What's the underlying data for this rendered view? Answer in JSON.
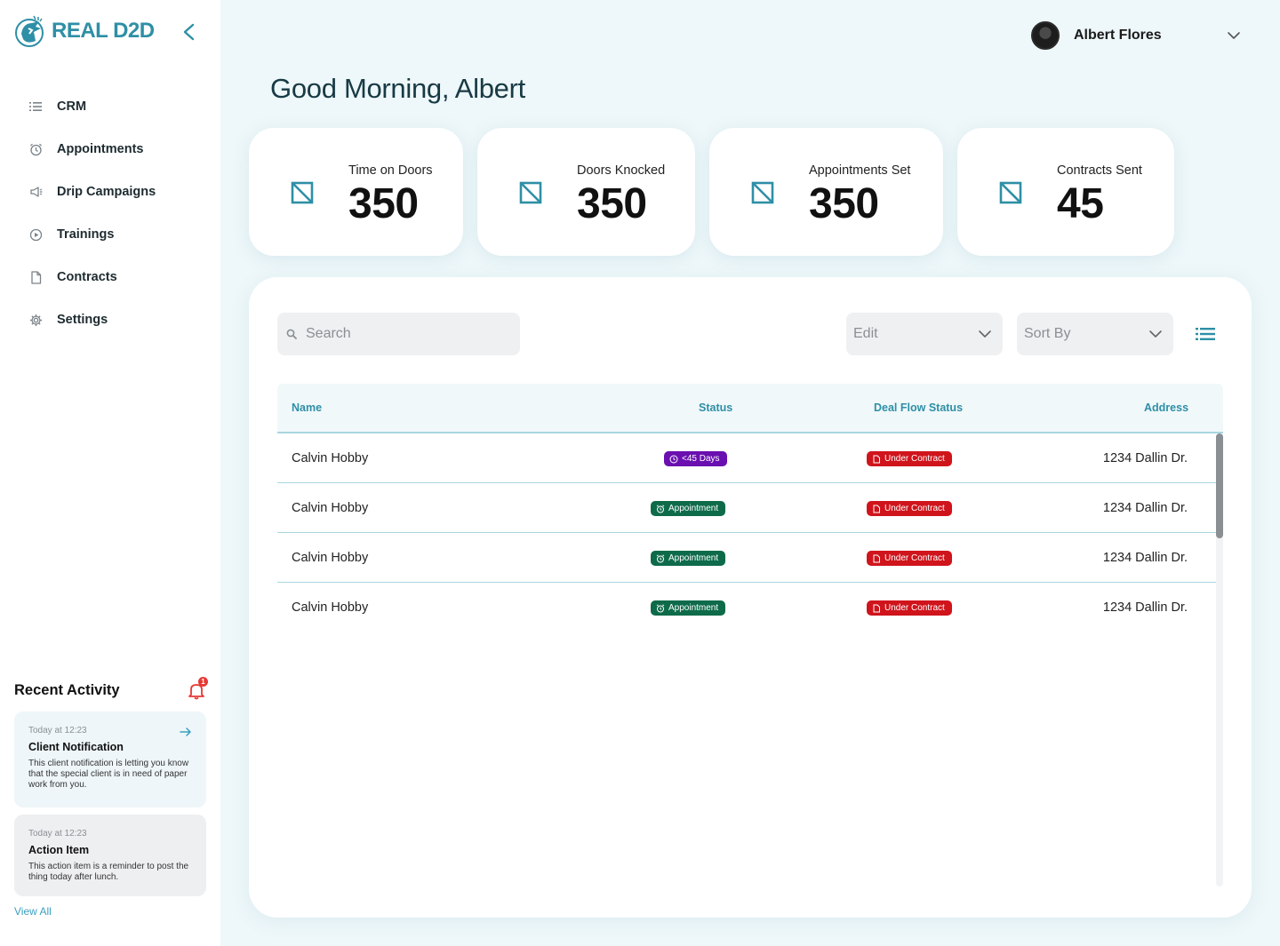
{
  "brand": {
    "name": "REAL D2D",
    "color": "#2e8fa6"
  },
  "sidebar": {
    "items": [
      {
        "label": "CRM",
        "icon": "list-icon"
      },
      {
        "label": "Appointments",
        "icon": "alarm-clock-icon"
      },
      {
        "label": "Drip Campaigns",
        "icon": "megaphone-icon"
      },
      {
        "label": "Trainings",
        "icon": "play-circle-icon"
      },
      {
        "label": "Contracts",
        "icon": "document-icon"
      },
      {
        "label": "Settings",
        "icon": "gear-icon"
      }
    ]
  },
  "recent_activity": {
    "title": "Recent Activity",
    "notification_count": "1",
    "items": [
      {
        "time": "Today at 12:23",
        "title": "Client Notification",
        "body": "This client notification is letting you know that the special client is in need of paper work from you."
      },
      {
        "time": "Today at 12:23",
        "title": "Action Item",
        "body": "This action item is a reminder to post the thing today after lunch."
      }
    ],
    "view_all": "View All"
  },
  "user": {
    "name": "Albert Flores"
  },
  "greeting": "Good Morning, Albert",
  "stats": [
    {
      "label": "Time on Doors",
      "value": "350"
    },
    {
      "label": "Doors Knocked",
      "value": "350"
    },
    {
      "label": "Appointments Set",
      "value": "350"
    },
    {
      "label": "Contracts Sent",
      "value": "45"
    }
  ],
  "toolbar": {
    "search_placeholder": "Search",
    "edit_label": "Edit",
    "sort_label": "Sort By"
  },
  "table": {
    "columns": [
      "Name",
      "Status",
      "Deal Flow Status",
      "Address"
    ],
    "rows": [
      {
        "name": "Calvin Hobby",
        "status": "<45 Days",
        "deal_flow": "Under Contract",
        "address": "1234 Dallin Dr."
      },
      {
        "name": "Calvin Hobby",
        "status": "Appointment",
        "deal_flow": "Under Contract",
        "address": "1234 Dallin Dr."
      },
      {
        "name": "Calvin Hobby",
        "status": "Appointment",
        "deal_flow": "Under Contract",
        "address": "1234 Dallin Dr."
      },
      {
        "name": "Calvin Hobby",
        "status": "Appointment",
        "deal_flow": "Under Contract",
        "address": "1234 Dallin Dr."
      }
    ]
  },
  "colors": {
    "accent": "#2e8fa6",
    "tag_days": "#6a0fb0",
    "tag_appointment": "#0e6b4a",
    "tag_contract": "#d0141c"
  }
}
